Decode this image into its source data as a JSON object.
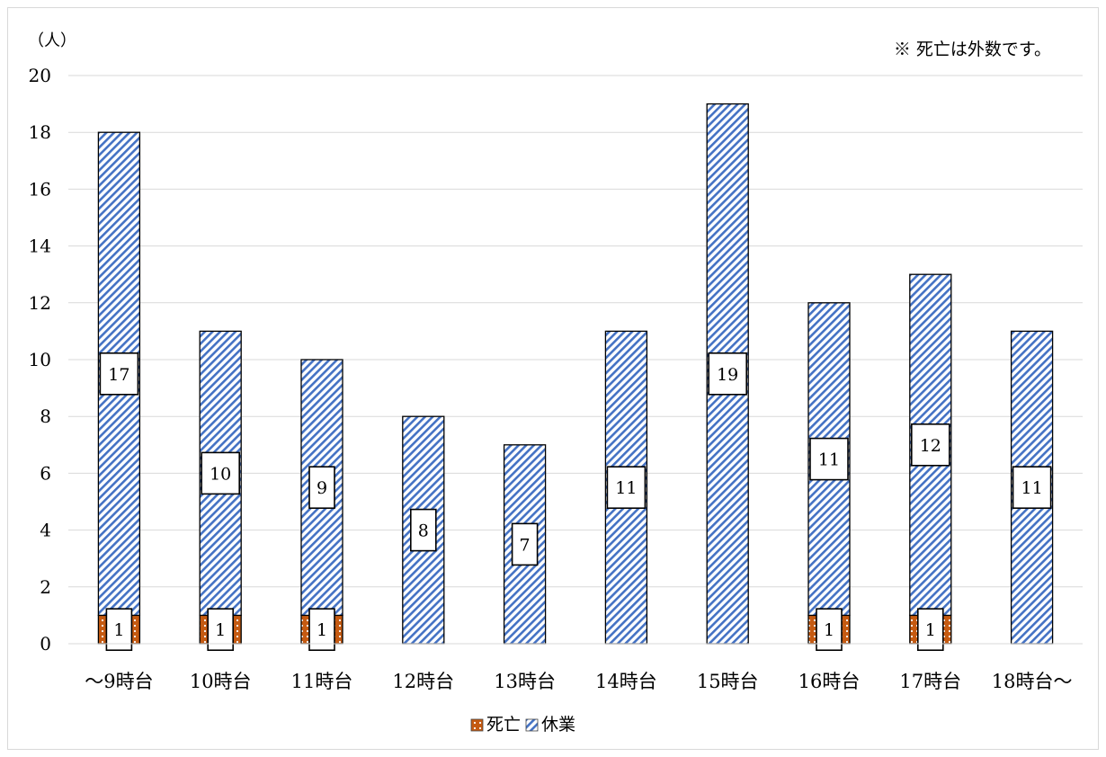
{
  "chart_data": {
    "type": "bar",
    "stacked": true,
    "unit_label": "（人）",
    "note": "※ 死亡は外数です。",
    "categories": [
      "～9時台",
      "10時台",
      "11時台",
      "12時台",
      "13時台",
      "14時台",
      "15時台",
      "16時台",
      "17時台",
      "18時台～"
    ],
    "series": [
      {
        "name": "死亡",
        "values": [
          1,
          1,
          1,
          0,
          0,
          0,
          0,
          1,
          1,
          0
        ],
        "color": "#c55a11",
        "pattern": "dots"
      },
      {
        "name": "休業",
        "values": [
          17,
          10,
          9,
          8,
          7,
          11,
          19,
          11,
          12,
          11
        ],
        "color": "#4472c4",
        "pattern": "diagonal-stripes"
      }
    ],
    "ylim": [
      0,
      20
    ],
    "yticks": [
      0,
      2,
      4,
      6,
      8,
      10,
      12,
      14,
      16,
      18,
      20
    ],
    "grid": true,
    "legend_position": "bottom"
  }
}
